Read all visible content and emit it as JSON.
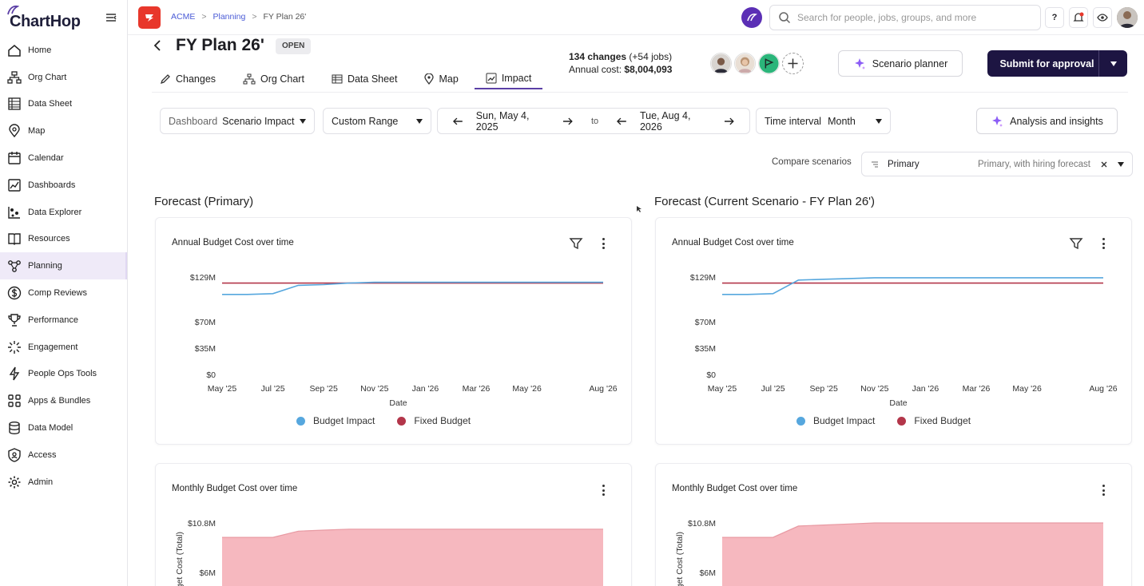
{
  "app": {
    "name": "ChartHop"
  },
  "sidebar": {
    "items": [
      {
        "label": "Home",
        "icon": "home-icon"
      },
      {
        "label": "Org Chart",
        "icon": "org-chart-icon"
      },
      {
        "label": "Data Sheet",
        "icon": "data-sheet-icon"
      },
      {
        "label": "Map",
        "icon": "map-pin-icon"
      },
      {
        "label": "Calendar",
        "icon": "calendar-icon"
      },
      {
        "label": "Dashboards",
        "icon": "dashboards-icon"
      },
      {
        "label": "Data Explorer",
        "icon": "data-explorer-icon"
      },
      {
        "label": "Resources",
        "icon": "book-icon"
      },
      {
        "label": "Planning",
        "icon": "planning-icon",
        "active": true
      },
      {
        "label": "Comp Reviews",
        "icon": "dollar-icon"
      },
      {
        "label": "Performance",
        "icon": "trophy-icon"
      },
      {
        "label": "Engagement",
        "icon": "engagement-icon"
      },
      {
        "label": "People Ops Tools",
        "icon": "lightning-icon"
      },
      {
        "label": "Apps & Bundles",
        "icon": "apps-icon"
      },
      {
        "label": "Data Model",
        "icon": "database-icon"
      },
      {
        "label": "Access",
        "icon": "shield-icon"
      },
      {
        "label": "Admin",
        "icon": "gear-icon"
      }
    ]
  },
  "topbar": {
    "breadcrumb": [
      "ACME",
      "Planning",
      "FY Plan 26'"
    ],
    "search_placeholder": "Search for people, jobs, groups, and more",
    "help_label": "?"
  },
  "plan": {
    "title": "FY Plan 26'",
    "status": "OPEN",
    "tabs": [
      "Changes",
      "Org Chart",
      "Data Sheet",
      "Map",
      "Impact"
    ],
    "active_tab": "Impact",
    "changes_count": "134 changes",
    "changes_jobs": "(+54 jobs)",
    "annual_cost_label": "Annual cost:",
    "annual_cost_value": "$8,004,093",
    "scenario_planner_label": "Scenario planner",
    "submit_label": "Submit for approval"
  },
  "filters": {
    "dashboard_label": "Dashboard",
    "dashboard_value": "Scenario Impact",
    "range_value": "Custom Range",
    "start_date": "Sun, May 4, 2025",
    "to_label": "to",
    "end_date": "Tue, Aug 4, 2026",
    "interval_label": "Time interval",
    "interval_value": "Month",
    "insights_label": "Analysis and insights",
    "compare_label": "Compare scenarios",
    "compare_primary": "Primary",
    "compare_secondary": "Primary, with hiring forecast"
  },
  "sections": {
    "left_title": "Forecast (Primary)",
    "right_title": "Forecast (Current Scenario - FY Plan 26')"
  },
  "cards": {
    "annual_title": "Annual Budget Cost over time",
    "monthly_title": "Monthly Budget Cost over time",
    "x_label": "Date",
    "monthly_y_label": "Budget Cost (Total)",
    "legend": [
      "Budget Impact",
      "Fixed Budget"
    ]
  },
  "colors": {
    "budget_impact": "#56a7de",
    "fixed_budget": "#b3364a",
    "area_fill": "#f6b8bf",
    "accent": "#5b3fa6",
    "submit_bg": "#1d1542"
  },
  "chart_data": [
    {
      "type": "line",
      "title": "Annual Budget Cost over time",
      "xlabel": "Date",
      "ylabel": "",
      "x_ticks": [
        "May '25",
        "Jul '25",
        "Sep '25",
        "Nov '25",
        "Jan '26",
        "Mar '26",
        "May '26",
        "Aug '26"
      ],
      "y_ticks": [
        "$0",
        "$35M",
        "$70M",
        "$129M"
      ],
      "ylim": [
        0,
        129
      ],
      "x": [
        "May '25",
        "Jun '25",
        "Jul '25",
        "Aug '25",
        "Sep '25",
        "Oct '25",
        "Nov '25",
        "Dec '25",
        "Jan '26",
        "Feb '26",
        "Mar '26",
        "Apr '26",
        "May '26",
        "Jun '26",
        "Jul '26",
        "Aug '26"
      ],
      "series": [
        {
          "name": "Budget Impact",
          "values": [
            106,
            106,
            107,
            118,
            119,
            121,
            122,
            122,
            122,
            122,
            122,
            122,
            122,
            122,
            122,
            122
          ]
        },
        {
          "name": "Fixed Budget",
          "values": [
            121,
            121,
            121,
            121,
            121,
            121,
            121,
            121,
            121,
            121,
            121,
            121,
            121,
            121,
            121,
            121
          ]
        }
      ],
      "legend_position": "bottom"
    },
    {
      "type": "line",
      "title": "Annual Budget Cost over time",
      "xlabel": "Date",
      "ylabel": "",
      "x_ticks": [
        "May '25",
        "Jul '25",
        "Sep '25",
        "Nov '25",
        "Jan '26",
        "Mar '26",
        "May '26",
        "Aug '26"
      ],
      "y_ticks": [
        "$0",
        "$35M",
        "$70M",
        "$129M"
      ],
      "ylim": [
        0,
        129
      ],
      "x": [
        "May '25",
        "Jun '25",
        "Jul '25",
        "Aug '25",
        "Sep '25",
        "Oct '25",
        "Nov '25",
        "Dec '25",
        "Jan '26",
        "Feb '26",
        "Mar '26",
        "Apr '26",
        "May '26",
        "Jun '26",
        "Jul '26",
        "Aug '26"
      ],
      "series": [
        {
          "name": "Budget Impact",
          "values": [
            106,
            106,
            107,
            125,
            126,
            127,
            128,
            128,
            128,
            128,
            128,
            128,
            128,
            128,
            128,
            128
          ]
        },
        {
          "name": "Fixed Budget",
          "values": [
            121,
            121,
            121,
            121,
            121,
            121,
            121,
            121,
            121,
            121,
            121,
            121,
            121,
            121,
            121,
            121
          ]
        }
      ],
      "legend_position": "bottom"
    },
    {
      "type": "area",
      "title": "Monthly Budget Cost over time",
      "ylabel": "Budget Cost (Total)",
      "y_ticks": [
        "$6M",
        "$10.8M"
      ],
      "x": [
        "May '25",
        "Jun '25",
        "Jul '25",
        "Aug '25",
        "Sep '25",
        "Oct '25",
        "Nov '25",
        "Dec '25",
        "Jan '26",
        "Feb '26",
        "Mar '26",
        "Apr '26",
        "May '26",
        "Jun '26",
        "Jul '26",
        "Aug '26"
      ],
      "series": [
        {
          "values": [
            9.4,
            9.4,
            9.4,
            10.0,
            10.1,
            10.2,
            10.2,
            10.2,
            10.2,
            10.2,
            10.2,
            10.2,
            10.2,
            10.2,
            10.2,
            10.2
          ]
        }
      ]
    },
    {
      "type": "area",
      "title": "Monthly Budget Cost over time",
      "ylabel": "Budget Cost (Total)",
      "y_ticks": [
        "$6M",
        "$10.8M"
      ],
      "x": [
        "May '25",
        "Jun '25",
        "Jul '25",
        "Aug '25",
        "Sep '25",
        "Oct '25",
        "Nov '25",
        "Dec '25",
        "Jan '26",
        "Feb '26",
        "Mar '26",
        "Apr '26",
        "May '26",
        "Jun '26",
        "Jul '26",
        "Aug '26"
      ],
      "series": [
        {
          "values": [
            9.4,
            9.4,
            9.4,
            10.5,
            10.6,
            10.7,
            10.8,
            10.8,
            10.8,
            10.8,
            10.8,
            10.8,
            10.8,
            10.8,
            10.8,
            10.8
          ]
        }
      ]
    }
  ]
}
